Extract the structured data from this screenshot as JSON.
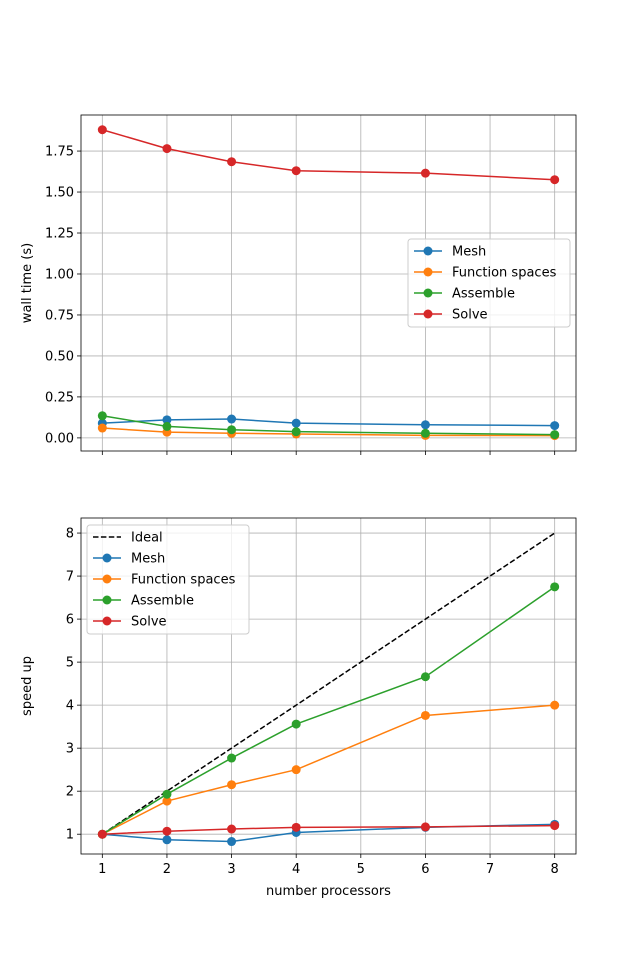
{
  "chart_data": [
    {
      "type": "line",
      "title": "",
      "xlabel": "",
      "ylabel": "wall time (s)",
      "x": [
        1,
        2,
        3,
        4,
        6,
        8
      ],
      "xticks": [
        1,
        2,
        3,
        4,
        5,
        6,
        7,
        8
      ],
      "show_xtick_labels": false,
      "xlim": [
        0.67,
        8.33
      ],
      "ylim": [
        -0.08,
        1.97
      ],
      "yticks": [
        0.0,
        0.25,
        0.5,
        0.75,
        1.0,
        1.25,
        1.5,
        1.75
      ],
      "ytick_labels": [
        "0.00",
        "0.25",
        "0.50",
        "0.75",
        "1.00",
        "1.25",
        "1.50",
        "1.75"
      ],
      "grid": true,
      "legend_position": "center-right",
      "series": [
        {
          "name": "Mesh",
          "color": "#1f77b4",
          "style": "solid-marker",
          "values": [
            0.09,
            0.11,
            0.115,
            0.09,
            0.08,
            0.075
          ]
        },
        {
          "name": "Function spaces",
          "color": "#ff7f0e",
          "style": "solid-marker",
          "values": [
            0.06,
            0.035,
            0.028,
            0.024,
            0.015,
            0.014
          ]
        },
        {
          "name": "Assemble",
          "color": "#2ca02c",
          "style": "solid-marker",
          "values": [
            0.135,
            0.07,
            0.05,
            0.038,
            0.028,
            0.02
          ]
        },
        {
          "name": "Solve",
          "color": "#d62728",
          "style": "solid-marker",
          "values": [
            1.88,
            1.765,
            1.685,
            1.63,
            1.615,
            1.575
          ]
        }
      ]
    },
    {
      "type": "line",
      "title": "",
      "xlabel": "number processors",
      "ylabel": "speed up",
      "x": [
        1,
        2,
        3,
        4,
        6,
        8
      ],
      "xticks": [
        1,
        2,
        3,
        4,
        5,
        6,
        7,
        8
      ],
      "show_xtick_labels": true,
      "xlim": [
        0.67,
        8.33
      ],
      "ylim": [
        0.54,
        8.35
      ],
      "yticks": [
        1,
        2,
        3,
        4,
        5,
        6,
        7,
        8
      ],
      "ytick_labels": [
        "1",
        "2",
        "3",
        "4",
        "5",
        "6",
        "7",
        "8"
      ],
      "grid": true,
      "legend_position": "top-left",
      "series": [
        {
          "name": "Ideal",
          "color": "#000000",
          "style": "dashed",
          "x": [
            1,
            8
          ],
          "values": [
            1,
            8
          ]
        },
        {
          "name": "Mesh",
          "color": "#1f77b4",
          "style": "solid-marker",
          "values": [
            1.0,
            0.87,
            0.83,
            1.04,
            1.16,
            1.23
          ]
        },
        {
          "name": "Function spaces",
          "color": "#ff7f0e",
          "style": "solid-marker",
          "values": [
            1.0,
            1.77,
            2.15,
            2.5,
            3.76,
            4.0
          ]
        },
        {
          "name": "Assemble",
          "color": "#2ca02c",
          "style": "solid-marker",
          "values": [
            1.0,
            1.93,
            2.77,
            3.56,
            4.66,
            6.75
          ]
        },
        {
          "name": "Solve",
          "color": "#d62728",
          "style": "solid-marker",
          "values": [
            1.0,
            1.07,
            1.12,
            1.16,
            1.17,
            1.2
          ]
        }
      ]
    }
  ]
}
